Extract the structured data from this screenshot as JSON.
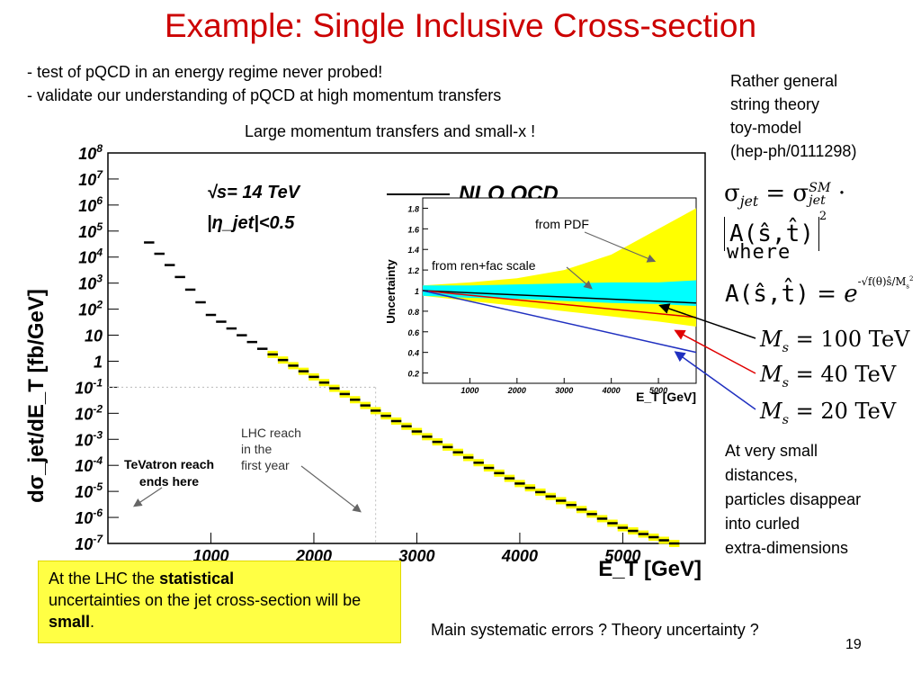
{
  "slide": {
    "title": "Example: Single Inclusive Cross-section",
    "bullets": [
      "- test of pQCD in an energy regime never probed!",
      "- validate our understanding of pQCD at high momentum transfers"
    ],
    "subtitle": "Large momentum transfers and small-x !",
    "toy_model": [
      "Rather general",
      "string theory",
      "toy-model",
      "(hep-ph/0111298)"
    ],
    "formula_sigma": {
      "lhs": "σ",
      "lhs_sub": "jet",
      "eq": "=",
      "rhs": "σ",
      "rhs_sup": "SM",
      "rhs_sub": "jet",
      "dot": "·",
      "amp": "A(ŝ,t̂)",
      "power": "2"
    },
    "where_label": "where",
    "formula_a": {
      "lhs": "A(ŝ,t̂)",
      "eq": "=",
      "base": "e",
      "exponent": "-√f(θ)ŝ/M",
      "exp_sub": "s",
      "exp_sup": "2"
    },
    "ms_values": [
      {
        "sym": "M",
        "sub": "s",
        "eq": "=",
        "value": "100 TeV",
        "color": "#000000"
      },
      {
        "sym": "M",
        "sub": "s",
        "eq": "=",
        "value": "40 TeV",
        "color": "#e00000"
      },
      {
        "sym": "M",
        "sub": "s",
        "eq": "=",
        "value": "20 TeV",
        "color": "#2030c0"
      }
    ],
    "at_small": [
      "At very small",
      "distances,",
      "particles disappear",
      "into curled",
      "extra-dimensions"
    ],
    "lhc_reach": [
      "LHC reach",
      "in the",
      "first year"
    ],
    "tevatron_reach": [
      "TeVatron reach",
      "ends here"
    ],
    "yellow_box": {
      "t1": "At the LHC the ",
      "b1": "statistical",
      "t2": "uncertainties on the jet cross-section will be ",
      "b2": "small",
      "t3": "."
    },
    "main_systematic": "Main systematic errors ?  Theory uncertainty ?",
    "page_number": "19"
  },
  "chart_data": [
    {
      "type": "line",
      "title": "",
      "xlabel": "E_T  [GeV]",
      "ylabel": "dσ_jet/dE_T [fb/GeV]",
      "y_scale": "log",
      "xlim": [
        0,
        5800
      ],
      "ylim": [
        1e-07,
        100000000.0
      ],
      "x_ticks": [
        "1000",
        "2000",
        "3000",
        "4000",
        "5000"
      ],
      "y_ticks": [
        "10^8",
        "10^7",
        "10^6",
        "10^5",
        "10^4",
        "10^3",
        "10^2",
        "10",
        "1",
        "10^-1",
        "10^-2",
        "10^-3",
        "10^-4",
        "10^-5",
        "10^-6",
        "10^-7"
      ],
      "legend": "NLO QCD",
      "annotations": [
        "√s= 14 TeV",
        "|η_jet|<0.5"
      ],
      "series": [
        {
          "x": [
            350,
            650,
            1000,
            1500,
            2000,
            2500,
            3000,
            3500,
            4000,
            4500,
            5000,
            5500
          ],
          "y": [
            60000,
            3000,
            60,
            3,
            0.25,
            0.02,
            0.002,
            0.0002,
            2e-05,
            3e-06,
            4e-07,
            1e-07
          ]
        }
      ],
      "guide_lines": {
        "x": 2600,
        "y": 0.1
      }
    },
    {
      "type": "area",
      "ylabel": "Uncertainty",
      "xlabel": "E_T  [GeV]",
      "xlim": [
        0,
        5800
      ],
      "ylim": [
        0.1,
        1.9
      ],
      "x_ticks": [
        "1000",
        "2000",
        "3000",
        "4000",
        "5000"
      ],
      "y_ticks": [
        "1.8",
        "1.6",
        "1.4",
        "1.2",
        "1",
        "0.8",
        "0.6",
        "0.4",
        "0.2"
      ],
      "annotations": [
        "from PDF",
        "from ren+fac scale"
      ],
      "series": [
        {
          "name": "from PDF",
          "x": [
            0,
            1000,
            2000,
            3000,
            4000,
            5000,
            5800
          ],
          "upper": [
            1.05,
            1.08,
            1.12,
            1.2,
            1.35,
            1.6,
            1.8
          ],
          "lower": [
            0.95,
            0.9,
            0.85,
            0.8,
            0.75,
            0.7,
            0.65
          ],
          "color": "#ffff00"
        },
        {
          "name": "from ren+fac scale",
          "x": [
            0,
            1000,
            2000,
            3000,
            4000,
            5000,
            5800
          ],
          "upper": [
            1.05,
            1.05,
            1.06,
            1.07,
            1.08,
            1.08,
            1.1
          ],
          "lower": [
            0.95,
            0.93,
            0.92,
            0.9,
            0.88,
            0.87,
            0.85
          ],
          "color": "#00ffff"
        },
        {
          "x": [
            0,
            5800
          ],
          "y": [
            1.0,
            0.88
          ],
          "color": "#000000"
        },
        {
          "x": [
            0,
            5800
          ],
          "y": [
            1.0,
            0.74
          ],
          "color": "#e00000"
        },
        {
          "x": [
            0,
            5800
          ],
          "y": [
            1.0,
            0.4
          ],
          "color": "#2030c0"
        }
      ]
    }
  ]
}
